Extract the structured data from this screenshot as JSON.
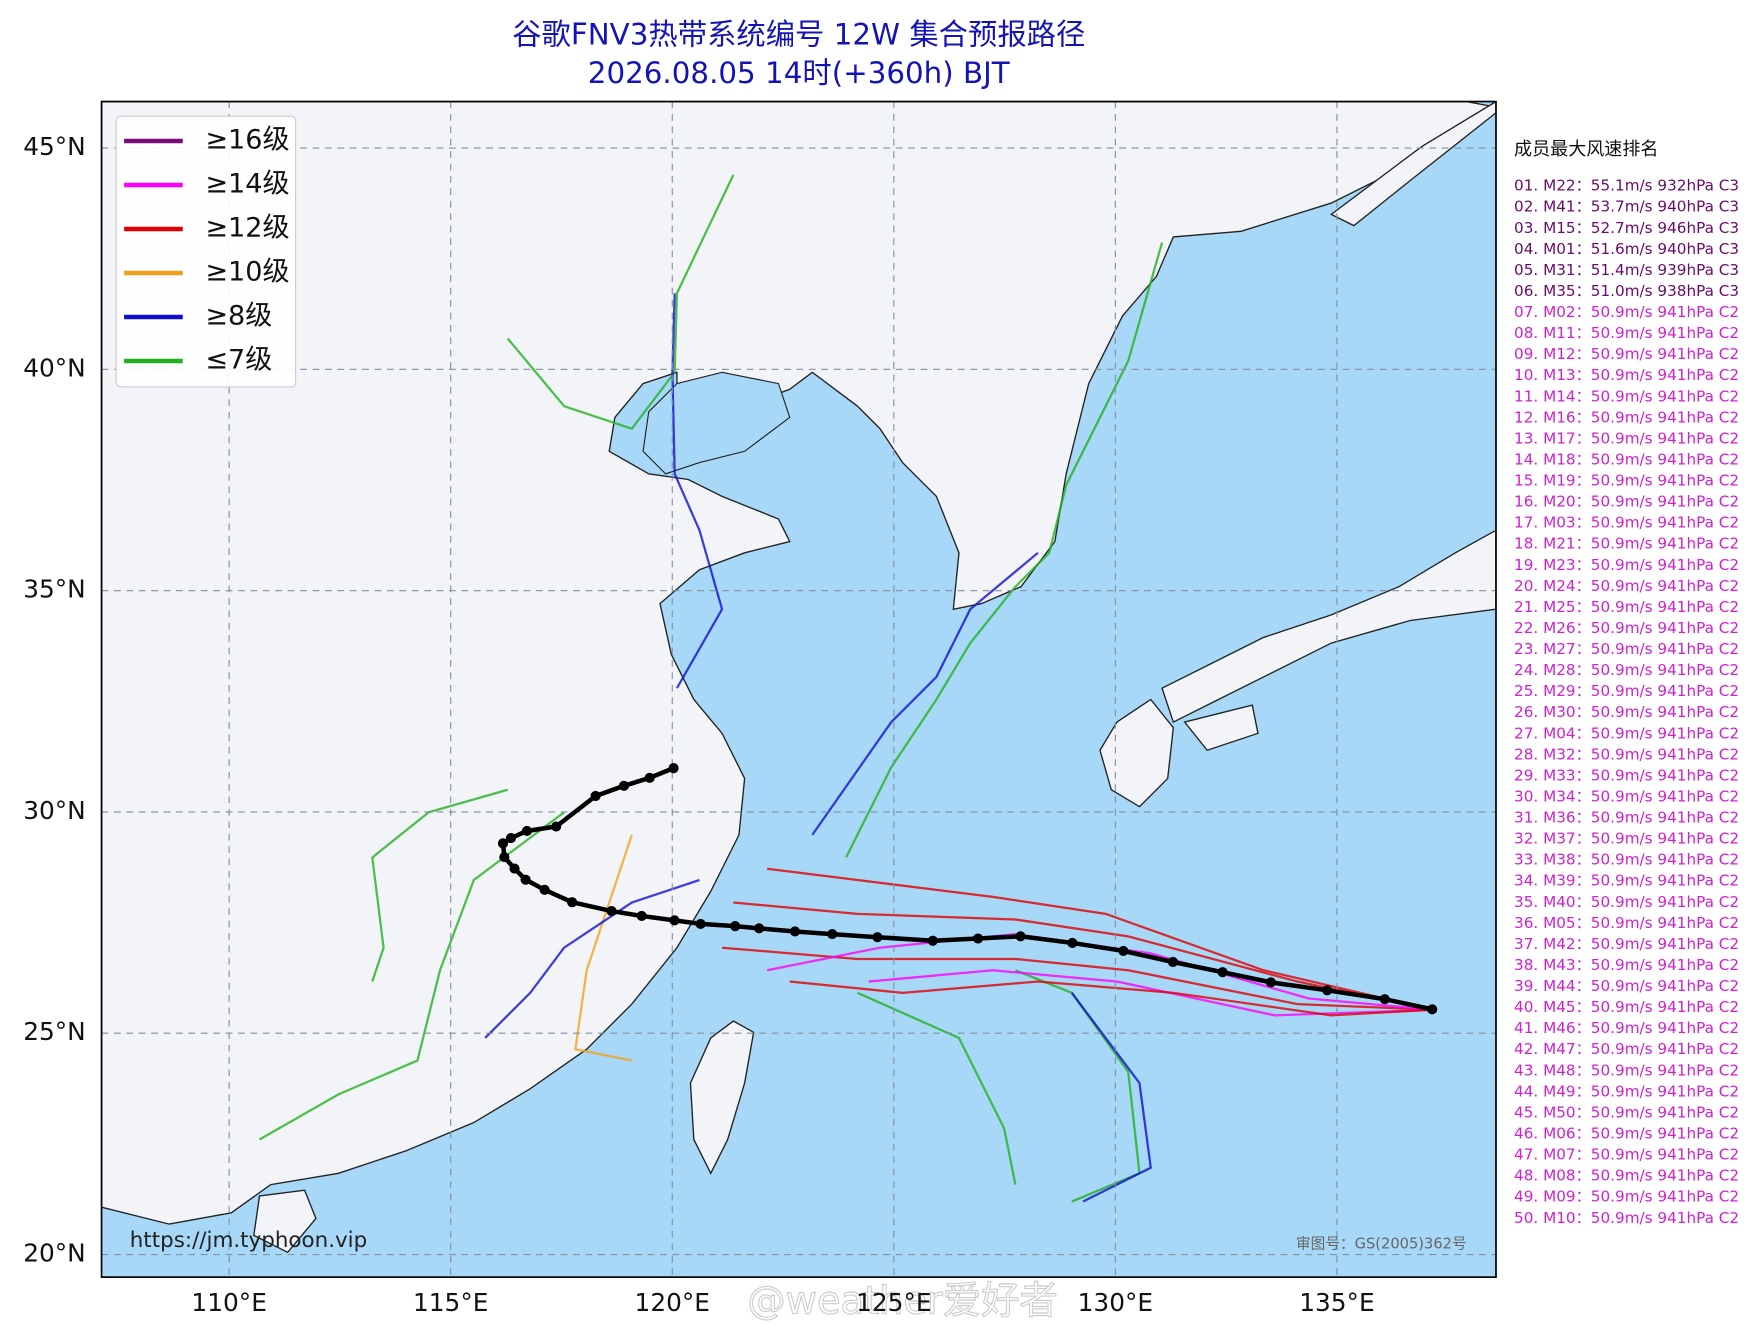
{
  "title": "谷歌FNV3热带系统编号 12W 集合预报路径",
  "subtitle": "2026.08.05 14时(+360h) BJT",
  "map": {
    "lon_range": [
      107.12,
      138.59
    ],
    "lat_range": [
      19.49,
      46.05
    ],
    "lon_ticks": [
      {
        "value": 110,
        "label": "110°E"
      },
      {
        "value": 115,
        "label": "115°E"
      },
      {
        "value": 120,
        "label": "120°E"
      },
      {
        "value": 125,
        "label": "125°E"
      },
      {
        "value": 130,
        "label": "130°E"
      },
      {
        "value": 135,
        "label": "135°E"
      }
    ],
    "lat_ticks": [
      {
        "value": 20,
        "label": "20°N"
      },
      {
        "value": 25,
        "label": "25°N"
      },
      {
        "value": 30,
        "label": "30°N"
      },
      {
        "value": 35,
        "label": "35°N"
      },
      {
        "value": 40,
        "label": "40°N"
      },
      {
        "value": 45,
        "label": "45°N"
      }
    ],
    "grid": true
  },
  "legend": [
    {
      "label": "≥16级",
      "color": "#7b0c7b"
    },
    {
      "label": "≥14级",
      "color": "#ff00ff"
    },
    {
      "label": "≥12级",
      "color": "#e00000"
    },
    {
      "label": "≥10级",
      "color": "#f0a020"
    },
    {
      "label": "≥8级",
      "color": "#1010d0"
    },
    {
      "label": "≤7级",
      "color": "#20b020"
    }
  ],
  "mean_track": {
    "color": "#000000",
    "lon": [
      137.15,
      136.08,
      134.78,
      133.51,
      132.42,
      131.3,
      130.18,
      129.03,
      127.86,
      126.9,
      125.88,
      124.63,
      123.61,
      122.77,
      121.96,
      121.42,
      120.64,
      120.05,
      119.31,
      118.63,
      117.74,
      117.12,
      116.69,
      116.44,
      116.21,
      116.18,
      116.36,
      116.72,
      117.38,
      118.27,
      118.91,
      119.49,
      120.03
    ],
    "lat": [
      25.54,
      25.77,
      25.97,
      26.15,
      26.38,
      26.61,
      26.86,
      27.04,
      27.19,
      27.14,
      27.09,
      27.17,
      27.24,
      27.3,
      27.37,
      27.42,
      27.47,
      27.55,
      27.65,
      27.76,
      27.96,
      28.24,
      28.47,
      28.72,
      28.98,
      29.29,
      29.41,
      29.57,
      29.67,
      30.36,
      30.59,
      30.77,
      30.99
    ]
  },
  "ranking": {
    "title": "成员最大风速排名",
    "items": [
      {
        "text": "01. M22：55.1m/s 932hPa C3",
        "color": "#6a0a6a"
      },
      {
        "text": "02. M41：53.7m/s 940hPa C3",
        "color": "#6a0a6a"
      },
      {
        "text": "03. M15：52.7m/s 946hPa C3",
        "color": "#6a0a6a"
      },
      {
        "text": "04. M01：51.6m/s 940hPa C3",
        "color": "#6a0a6a"
      },
      {
        "text": "05. M31：51.4m/s 939hPa C3",
        "color": "#6a0a6a"
      },
      {
        "text": "06. M35：51.0m/s 938hPa C3",
        "color": "#6a0a6a"
      },
      {
        "text": "07. M02：50.9m/s 941hPa C2",
        "color": "#d020d0"
      },
      {
        "text": "08. M11：50.9m/s 941hPa C2",
        "color": "#d020d0"
      },
      {
        "text": "09. M12：50.9m/s 941hPa C2",
        "color": "#d020d0"
      },
      {
        "text": "10. M13：50.9m/s 941hPa C2",
        "color": "#d020d0"
      },
      {
        "text": "11. M14：50.9m/s 941hPa C2",
        "color": "#d020d0"
      },
      {
        "text": "12. M16：50.9m/s 941hPa C2",
        "color": "#d020d0"
      },
      {
        "text": "13. M17：50.9m/s 941hPa C2",
        "color": "#d020d0"
      },
      {
        "text": "14. M18：50.9m/s 941hPa C2",
        "color": "#d020d0"
      },
      {
        "text": "15. M19：50.9m/s 941hPa C2",
        "color": "#d020d0"
      },
      {
        "text": "16. M20：50.9m/s 941hPa C2",
        "color": "#d020d0"
      },
      {
        "text": "17. M03：50.9m/s 941hPa C2",
        "color": "#d020d0"
      },
      {
        "text": "18. M21：50.9m/s 941hPa C2",
        "color": "#d020d0"
      },
      {
        "text": "19. M23：50.9m/s 941hPa C2",
        "color": "#d020d0"
      },
      {
        "text": "20. M24：50.9m/s 941hPa C2",
        "color": "#d020d0"
      },
      {
        "text": "21. M25：50.9m/s 941hPa C2",
        "color": "#d020d0"
      },
      {
        "text": "22. M26：50.9m/s 941hPa C2",
        "color": "#d020d0"
      },
      {
        "text": "23. M27：50.9m/s 941hPa C2",
        "color": "#d020d0"
      },
      {
        "text": "24. M28：50.9m/s 941hPa C2",
        "color": "#d020d0"
      },
      {
        "text": "25. M29：50.9m/s 941hPa C2",
        "color": "#d020d0"
      },
      {
        "text": "26. M30：50.9m/s 941hPa C2",
        "color": "#d020d0"
      },
      {
        "text": "27. M04：50.9m/s 941hPa C2",
        "color": "#d020d0"
      },
      {
        "text": "28. M32：50.9m/s 941hPa C2",
        "color": "#d020d0"
      },
      {
        "text": "29. M33：50.9m/s 941hPa C2",
        "color": "#d020d0"
      },
      {
        "text": "30. M34：50.9m/s 941hPa C2",
        "color": "#d020d0"
      },
      {
        "text": "31. M36：50.9m/s 941hPa C2",
        "color": "#d020d0"
      },
      {
        "text": "32. M37：50.9m/s 941hPa C2",
        "color": "#d020d0"
      },
      {
        "text": "33. M38：50.9m/s 941hPa C2",
        "color": "#d020d0"
      },
      {
        "text": "34. M39：50.9m/s 941hPa C2",
        "color": "#d020d0"
      },
      {
        "text": "35. M40：50.9m/s 941hPa C2",
        "color": "#d020d0"
      },
      {
        "text": "36. M05：50.9m/s 941hPa C2",
        "color": "#d020d0"
      },
      {
        "text": "37. M42：50.9m/s 941hPa C2",
        "color": "#d020d0"
      },
      {
        "text": "38. M43：50.9m/s 941hPa C2",
        "color": "#d020d0"
      },
      {
        "text": "39. M44：50.9m/s 941hPa C2",
        "color": "#d020d0"
      },
      {
        "text": "40. M45：50.9m/s 941hPa C2",
        "color": "#d020d0"
      },
      {
        "text": "41. M46：50.9m/s 941hPa C2",
        "color": "#d020d0"
      },
      {
        "text": "42. M47：50.9m/s 941hPa C2",
        "color": "#d020d0"
      },
      {
        "text": "43. M48：50.9m/s 941hPa C2",
        "color": "#d020d0"
      },
      {
        "text": "44. M49：50.9m/s 941hPa C2",
        "color": "#d020d0"
      },
      {
        "text": "45. M50：50.9m/s 941hPa C2",
        "color": "#d020d0"
      },
      {
        "text": "46. M06：50.9m/s 941hPa C2",
        "color": "#d020d0"
      },
      {
        "text": "47. M07：50.9m/s 941hPa C2",
        "color": "#d020d0"
      },
      {
        "text": "48. M08：50.9m/s 941hPa C2",
        "color": "#d020d0"
      },
      {
        "text": "49. M09：50.9m/s 941hPa C2",
        "color": "#d020d0"
      },
      {
        "text": "50. M10：50.9m/s 941hPa C2",
        "color": "#d020d0"
      }
    ]
  },
  "url": "https://jm.typhoon.vip",
  "approval": "审图号：GS(2005)362号",
  "watermark": "@weather爱好者"
}
